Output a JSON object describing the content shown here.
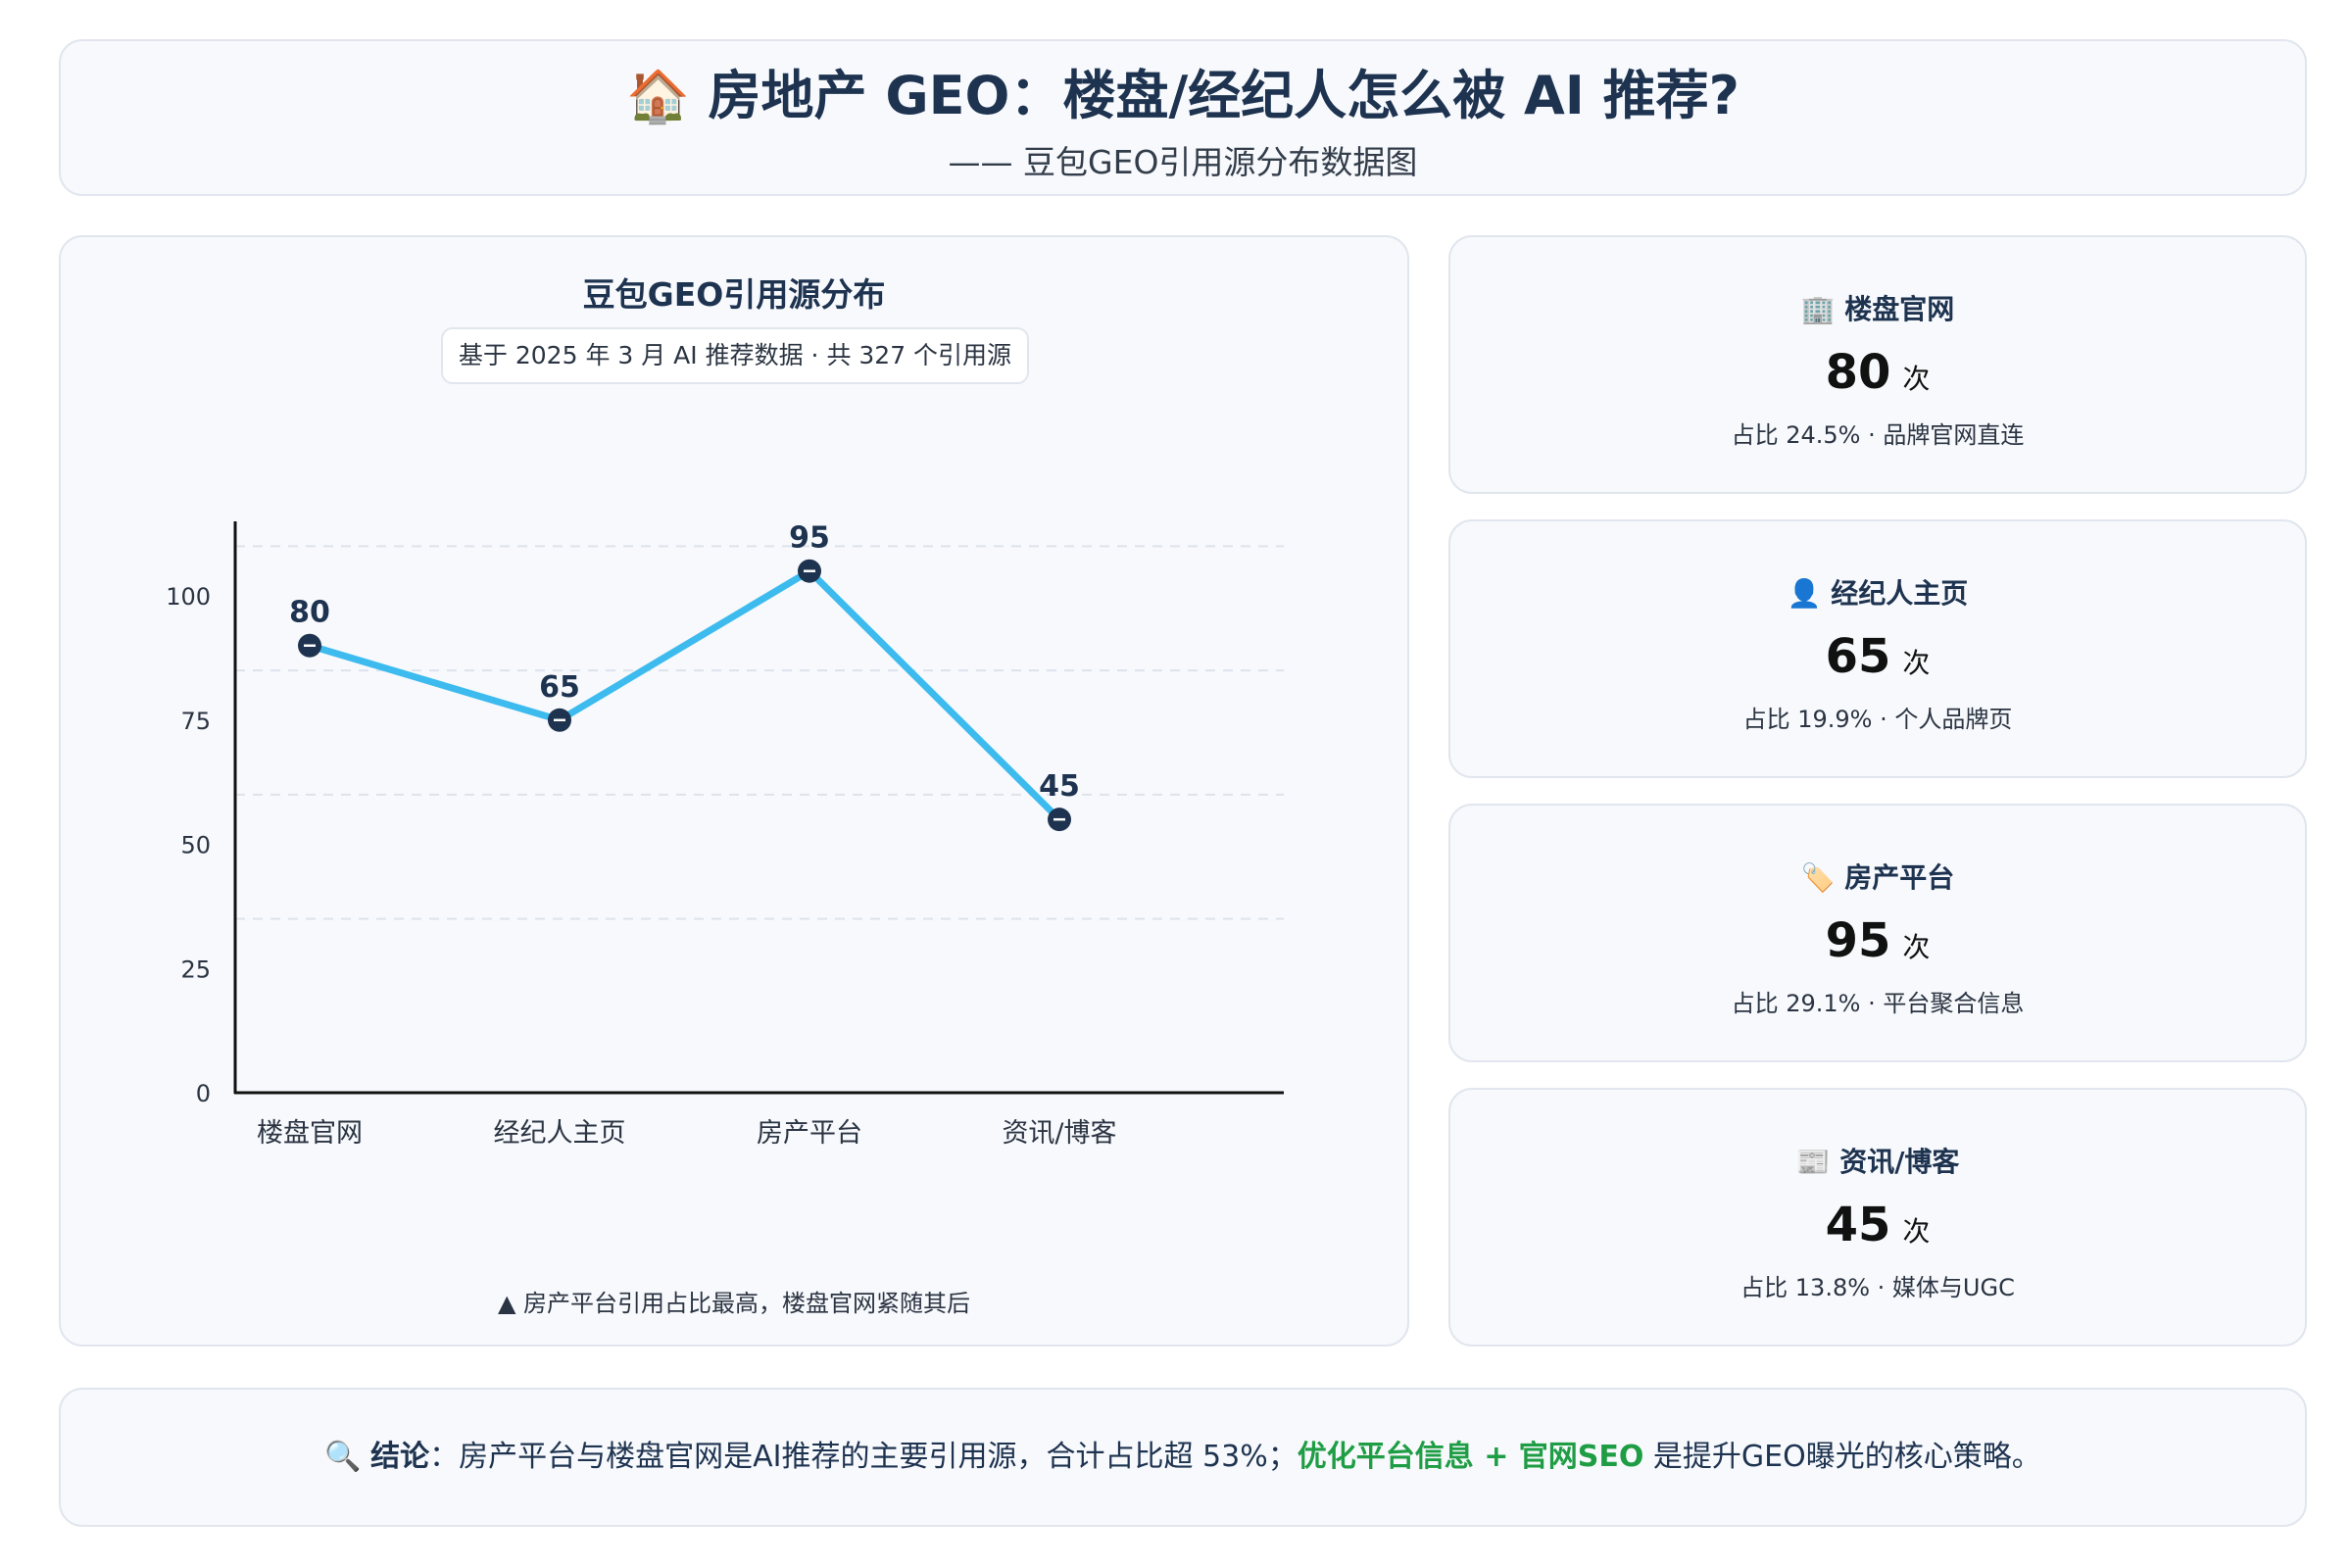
{
  "header": {
    "title_icon": "🏠",
    "title": "房地产 GEO：楼盘/经纪人怎么被 AI 推荐?",
    "subtitle": "—— 豆包GEO引用源分布数据图"
  },
  "chart_panel": {
    "title": "豆包GEO引用源分布",
    "subtitle_pill": "基于 2025 年 3 月 AI 推荐数据 · 共 327 个引用源",
    "footnote": "▲ 房产平台引用占比最高，楼盘官网紧随其后"
  },
  "chart_data": {
    "type": "line",
    "title": "豆包GEO引用源分布",
    "categories": [
      "楼盘官网",
      "经纪人主页",
      "房产平台",
      "资讯/博客"
    ],
    "values": [
      80,
      65,
      95,
      45
    ],
    "y_ticks": [
      0,
      25,
      50,
      75,
      100
    ],
    "ylim": [
      0,
      115
    ],
    "grid": "horizontal dashed",
    "line_color": "#3dbbee",
    "marker_color": "#1e3350"
  },
  "stats": [
    {
      "icon": "🏢",
      "icon_name": "office-building-icon",
      "label": "楼盘官网",
      "value": "80",
      "unit": "次",
      "note": "占比 24.5% · 品牌官网直连"
    },
    {
      "icon": "👤",
      "icon_name": "person-icon",
      "label": "经纪人主页",
      "value": "65",
      "unit": "次",
      "note": "占比 19.9% · 个人品牌页"
    },
    {
      "icon": "🏷️",
      "icon_name": "tag-icon",
      "label": "房产平台",
      "value": "95",
      "unit": "次",
      "note": "占比 29.1% · 平台聚合信息"
    },
    {
      "icon": "📰",
      "icon_name": "newspaper-icon",
      "label": "资讯/博客",
      "value": "45",
      "unit": "次",
      "note": "占比 13.8% · 媒体与UGC"
    }
  ],
  "conclusion": {
    "icon": "🔍",
    "label": "结论",
    "sep": "：",
    "text": "房产平台与楼盘官网是AI推荐的主要引用源，合计占比超 53%；",
    "highlight": "优化平台信息 + 官网SEO",
    "tail": " 是提升GEO曝光的核心策略。"
  },
  "colors": {
    "navy": "#1e3350",
    "accent_blue": "#3dbbee",
    "highlight_green": "#1f9d44",
    "card_bg": "#f7f9fc"
  }
}
